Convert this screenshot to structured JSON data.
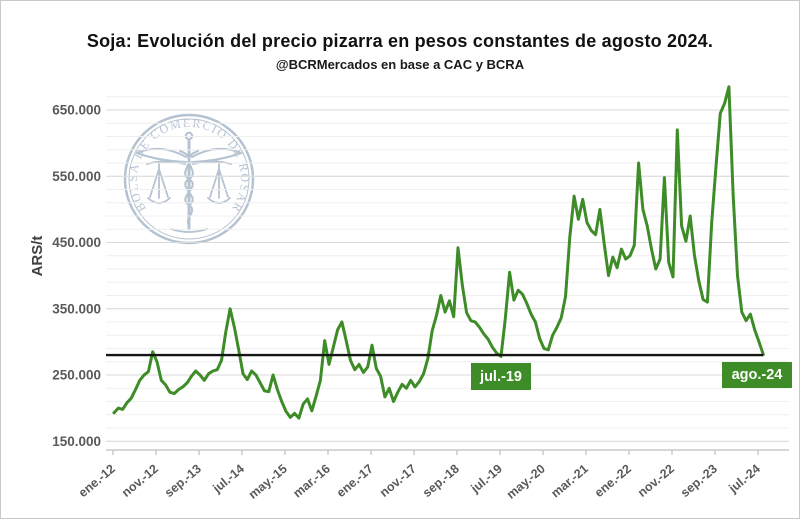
{
  "header": {
    "title": "Soja: Evolución del precio pizarra en pesos constantes de agosto 2024.",
    "subtitle": "@BCRMercados en base a CAC y BCRA"
  },
  "watermark": {
    "text": "BOLSA DE COMERCIO DE ROSARIO",
    "color": "#aebccd"
  },
  "colors": {
    "line_green": "#3e8c28",
    "callout_green": "#3e8c28",
    "reference_black": "#161616",
    "axis_text": "#595959",
    "grid_major": "#d9d9d9",
    "grid_minor": "#efefef",
    "axis_line": "#bfbfbf"
  },
  "chart_data": {
    "type": "line",
    "title": "Soja: Evolución del precio pizarra en pesos constantes de agosto 2024.",
    "subtitle": "@BCRMercados en base a CAC y BCRA",
    "xlabel": "",
    "ylabel": "ARS/t",
    "grid": "horizontal; minor every 20.000, major every 100.000",
    "legend_position": "none",
    "y_axis": {
      "min": 150000,
      "max": 650000,
      "tick_step": 100000,
      "tick_labels": [
        "150.000",
        "250.000",
        "350.000",
        "450.000",
        "550.000",
        "650.000"
      ]
    },
    "x_axis": {
      "tick_labels": [
        "ene.-12",
        "nov.-12",
        "sep.-13",
        "jul.-14",
        "may.-15",
        "mar.-16",
        "ene.-17",
        "nov.-17",
        "sep.-18",
        "jul.-19",
        "may.-20",
        "mar.-21",
        "ene.-22",
        "nov.-22",
        "sep.-23",
        "jul.-24"
      ],
      "tick_interval_months": 10,
      "label_rotation_deg": -40
    },
    "reference_line": {
      "value": 280000,
      "meaning": "nivel de precio de agosto 2024"
    },
    "annotations": [
      {
        "label": "jul.-19",
        "marks": "cruce del nivel de referencia en julio 2019"
      },
      {
        "label": "ago.-24",
        "marks": "precio final de la serie, agosto 2024"
      }
    ],
    "series": [
      {
        "name": "Precio pizarra soja en pesos constantes de agosto 2024 (ARS/t)",
        "unit": "ARS/t, en miles",
        "start_month": "2012-01",
        "end_month": "2024-08",
        "monthly_values_thousands": [
          193,
          200,
          198,
          208,
          215,
          228,
          242,
          250,
          255,
          285,
          270,
          242,
          235,
          224,
          222,
          228,
          232,
          238,
          248,
          256,
          250,
          242,
          252,
          256,
          258,
          272,
          315,
          350,
          322,
          288,
          252,
          243,
          256,
          250,
          238,
          226,
          225,
          250,
          228,
          210,
          195,
          186,
          192,
          185,
          206,
          214,
          196,
          218,
          242,
          302,
          266,
          292,
          318,
          330,
          302,
          272,
          258,
          266,
          254,
          262,
          295,
          260,
          248,
          217,
          230,
          210,
          224,
          236,
          230,
          242,
          232,
          240,
          252,
          275,
          317,
          340,
          370,
          345,
          362,
          338,
          442,
          386,
          344,
          332,
          330,
          322,
          312,
          304,
          292,
          283,
          278,
          335,
          405,
          363,
          378,
          372,
          358,
          342,
          330,
          305,
          290,
          288,
          310,
          322,
          336,
          368,
          458,
          520,
          485,
          515,
          480,
          468,
          462,
          500,
          448,
          400,
          428,
          412,
          440,
          425,
          430,
          446,
          570,
          500,
          475,
          440,
          410,
          425,
          548,
          420,
          398,
          620,
          475,
          452,
          490,
          430,
          392,
          364,
          360,
          480,
          565,
          645,
          660,
          685,
          520,
          400,
          345,
          332,
          342,
          318,
          300,
          281
        ]
      }
    ]
  }
}
